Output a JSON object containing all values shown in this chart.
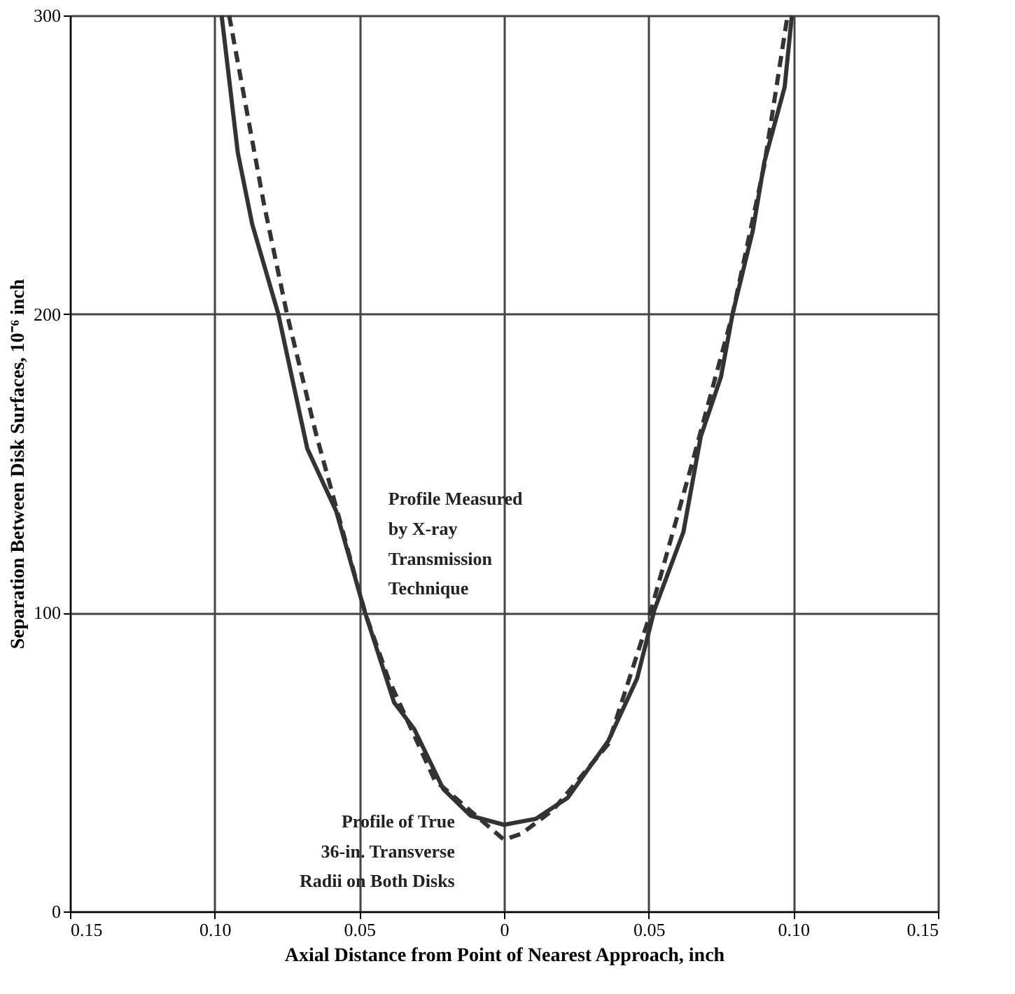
{
  "chart_data": {
    "type": "line",
    "xlabel": "Axial Distance from Point of Nearest Approach, inch",
    "ylabel": "Separation Between Disk Surfaces, 10⁻⁶ inch",
    "xlim": [
      -0.15,
      0.15
    ],
    "xticks": [
      {
        "value": -0.15,
        "label": "0.15"
      },
      {
        "value": -0.1,
        "label": "0.10"
      },
      {
        "value": -0.05,
        "label": "0.05"
      },
      0,
      {
        "value": 0.05,
        "label": "0.05"
      },
      {
        "value": 0.1,
        "label": "0.10"
      },
      {
        "value": 0.15,
        "label": "0.15"
      }
    ],
    "ylim": [
      0,
      300
    ],
    "yticks": [
      0,
      100,
      200,
      300
    ],
    "grid": true,
    "legend": false,
    "marker": "none",
    "series": [
      {
        "name": "Profile Measured by X-ray Transmission Technique",
        "color": "#333333",
        "line_style": "solid",
        "x": [
          -0.0976,
          -0.092,
          -0.087,
          -0.078,
          -0.068,
          -0.058,
          -0.048,
          -0.038,
          -0.031,
          -0.021,
          -0.0115,
          0,
          0.011,
          0.022,
          0.036,
          0.046,
          0.052,
          0.062,
          0.068,
          0.075,
          0.079,
          0.086,
          0.09,
          0.097,
          0.0995
        ],
        "values": [
          300,
          254,
          230,
          200,
          155,
          134,
          100,
          70,
          61,
          41,
          32,
          29,
          31,
          38,
          57,
          78,
          101,
          127,
          159,
          179,
          200,
          228,
          251,
          276,
          300
        ]
      },
      {
        "name": "Profile of True 36-in. Transverse Radii on Both Disks",
        "color": "#333333",
        "line_style": "dashed",
        "x": [
          -0.095,
          -0.083,
          -0.075,
          -0.065,
          -0.048,
          -0.04,
          -0.024,
          0,
          0.006,
          0.017,
          0.036,
          0.05,
          0.065,
          0.079,
          0.09,
          0.098
        ],
        "values": [
          300,
          237,
          200,
          160,
          100,
          78,
          44,
          24,
          26,
          34,
          56,
          98,
          150,
          200,
          250,
          300
        ]
      }
    ]
  }
}
